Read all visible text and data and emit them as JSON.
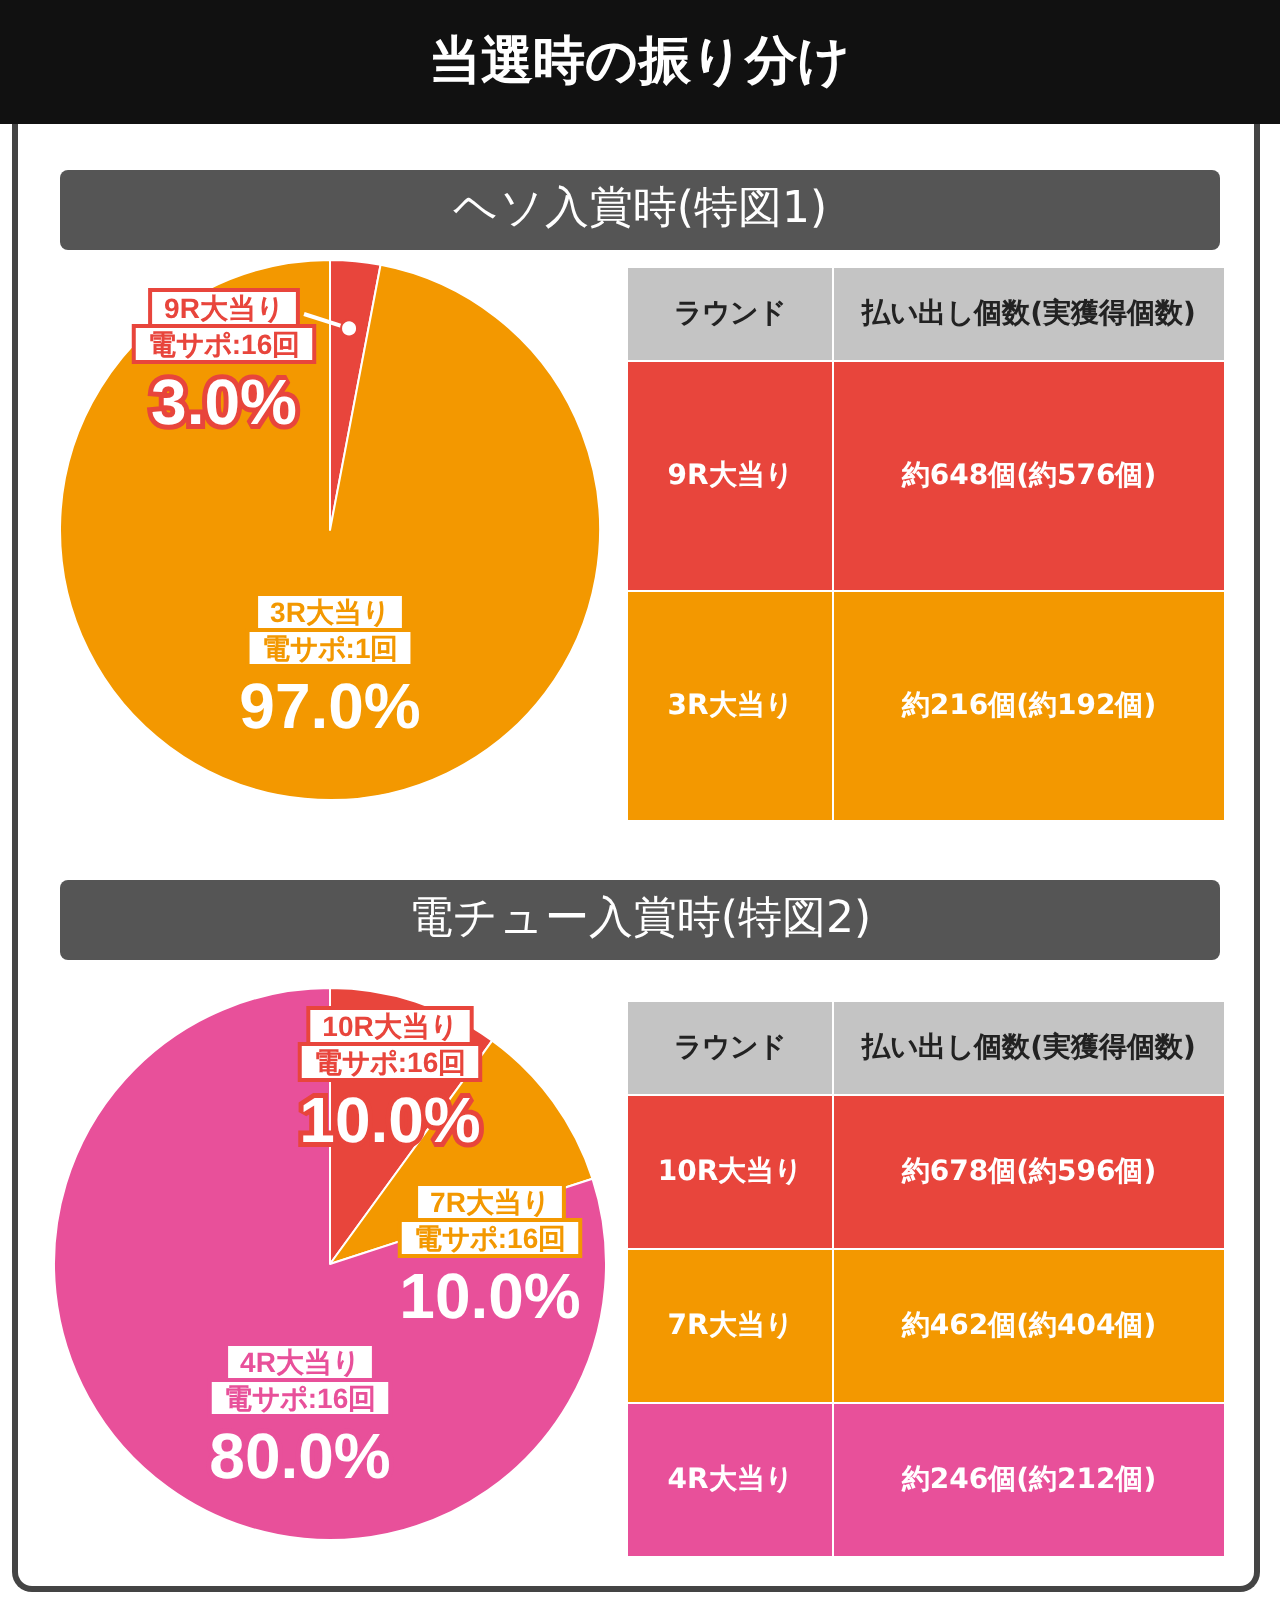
{
  "chart_data": [
    {
      "type": "pie",
      "title": "当選時の振り分け",
      "subtitle": "ヘソ入賞時(特図1)",
      "categories": [
        "9R大当り",
        "3R大当り"
      ],
      "annotations": [
        "電サポ:16回",
        "電サポ:1回"
      ],
      "values": [
        3.0,
        97.0
      ],
      "value_labels": [
        "3.0%",
        "97.0%"
      ],
      "colors": [
        "#e8453c",
        "#f39800"
      ],
      "legend": false
    },
    {
      "type": "other",
      "categories": [
        "9R大当り",
        "3R大当り"
      ],
      "annotations": [
        "ラウンド",
        "払い出し個数(実獲得個数)",
        "約648個(約576個)",
        "約216個(約192個)"
      ],
      "colors": [
        "#e8453c",
        "#f39800"
      ]
    },
    {
      "type": "pie",
      "subtitle": "電チュー入賞時(特図2)",
      "categories": [
        "10R大当り",
        "7R大当り",
        "4R大当り"
      ],
      "annotations": [
        "電サポ:16回",
        "電サポ:16回",
        "電サポ:16回"
      ],
      "values": [
        10.0,
        10.0,
        80.0
      ],
      "value_labels": [
        "10.0%",
        "10.0%",
        "80.0%"
      ],
      "colors": [
        "#e8453c",
        "#f39800",
        "#e8509a"
      ],
      "legend": false
    },
    {
      "type": "other",
      "categories": [
        "10R大当り",
        "7R大当り",
        "4R大当り"
      ],
      "annotations": [
        "ラウンド",
        "払い出し個数(実獲得個数)",
        "約678個(約596個)",
        "約462個(約404個)",
        "約246個(約212個)"
      ],
      "colors": [
        "#e8453c",
        "#f39800",
        "#e8509a"
      ]
    }
  ]
}
